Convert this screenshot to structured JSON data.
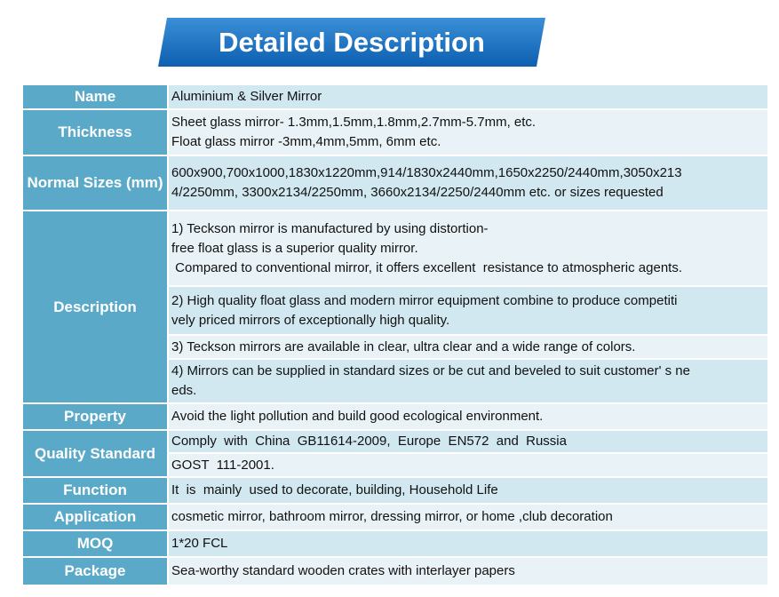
{
  "header": {
    "title": "Detailed Description"
  },
  "table": {
    "rows": [
      {
        "label": "Name",
        "cells": [
          [
            "Aluminium & Silver Mirror"
          ]
        ]
      },
      {
        "label": "Thickness",
        "cells": [
          [
            "Sheet glass mirror- 1.3mm,1.5mm,1.8mm,2.7mm-5.7mm, etc.",
            "Float glass mirror -3mm,4mm,5mm, 6mm etc."
          ]
        ]
      },
      {
        "label": "Normal Sizes (mm)",
        "cells": [
          [
            "600x900,700x1000,1830x1220mm,914/1830x2440mm,1650x2250/2440mm,3050x213",
            "4/2250mm, 3300x2134/2250mm, 3660x2134/2250/2440mm etc. or sizes requested"
          ]
        ]
      },
      {
        "label": "Description",
        "cells": [
          [
            "1) Teckson mirror is manufactured by using distortion-",
            "free float glass is a superior quality mirror.",
            " Compared to conventional mirror, it offers excellent  resistance to atmospheric agents."
          ],
          [
            "2) High quality float glass and modern mirror equipment combine to produce competiti",
            "vely priced mirrors of exceptionally high quality."
          ],
          [
            "3) Teckson mirrors are available in clear, ultra clear and a wide range of colors."
          ],
          [
            "4) Mirrors can be supplied in standard sizes or be cut and beveled to suit customer' s ne",
            "eds."
          ]
        ]
      },
      {
        "label": "Property",
        "cells": [
          [
            "Avoid the light pollution and build good ecological environment."
          ]
        ]
      },
      {
        "label": "Quality Standard",
        "cells": [
          [
            "Comply  with  China  GB11614-2009,  Europe  EN572  and  Russia"
          ],
          [
            "GOST  111-2001."
          ]
        ]
      },
      {
        "label": "Function",
        "cells": [
          [
            "It  is  mainly  used to decorate, building, Household Life"
          ]
        ]
      },
      {
        "label": "Application",
        "cells": [
          [
            "cosmetic mirror, bathroom mirror, dressing mirror, or home ,club decoration"
          ]
        ]
      },
      {
        "label": "MOQ",
        "cells": [
          [
            "1*20 FCL"
          ]
        ]
      },
      {
        "label": "Package",
        "cells": [
          [
            "Sea-worthy standard wooden crates with interlayer papers"
          ]
        ]
      }
    ]
  }
}
